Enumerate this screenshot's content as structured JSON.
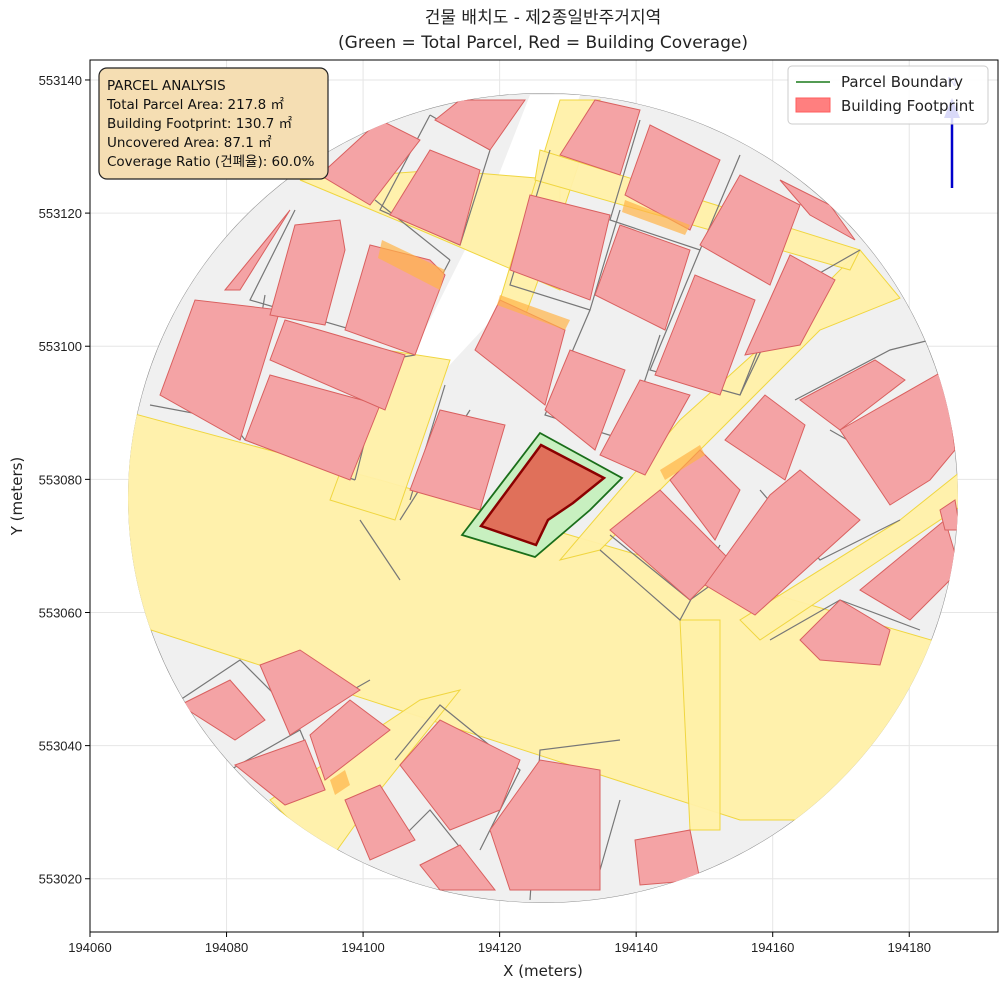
{
  "title": {
    "line1": "건물 배치도 - 제2종일반주거지역",
    "line2": "(Green = Total Parcel, Red = Building Coverage)"
  },
  "axes": {
    "xlabel": "X (meters)",
    "ylabel": "Y (meters)",
    "xlim": [
      194060,
      194193
    ],
    "ylim": [
      553012,
      553143
    ],
    "xticks": [
      "194060",
      "194080",
      "194100",
      "194120",
      "194140",
      "194160",
      "194180"
    ],
    "yticks": [
      "553020",
      "553040",
      "553060",
      "553080",
      "553100",
      "553120",
      "553140"
    ],
    "grid": true
  },
  "legend": {
    "placement": "top-right",
    "items": [
      {
        "label": "Parcel Boundary",
        "color": "#1a7a1a"
      },
      {
        "label": "Building Footprint",
        "color": "#ff7f7f"
      }
    ]
  },
  "info_box": {
    "heading": "PARCEL ANALYSIS",
    "total_area": "Total Parcel Area: 217.8 ㎡",
    "footprint": "Building Footprint: 130.7 ㎡",
    "uncovered": "Uncovered Area: 87.1 ㎡",
    "coverage": "Coverage Ratio (건폐율): 60.0%",
    "bg_color": "#f5deb3"
  },
  "colors": {
    "parcel_fill": "#c8f0c0",
    "parcel_stroke": "#1a6e1a",
    "building_fill": "#e0705a",
    "building_stroke": "#8b0000",
    "context_parcel": "#f0f0f0",
    "context_building": "#f4a3a5",
    "road": "#fff0a8",
    "north_arrow": "#0000cc"
  },
  "north_arrow": {
    "label": "N"
  }
}
